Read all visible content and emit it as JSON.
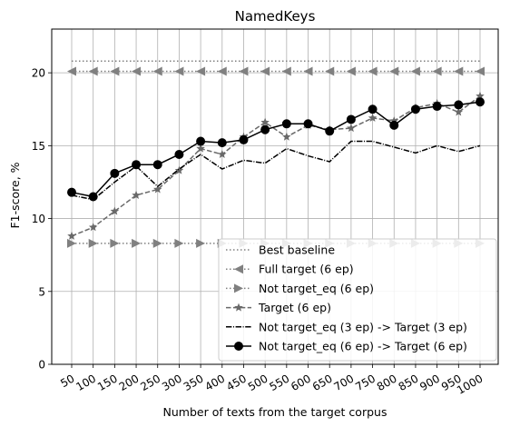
{
  "chart_data": {
    "type": "line",
    "title": "NamedKeys",
    "xlabel": "Number of texts from the target corpus",
    "ylabel": "F1-score, %",
    "ylim": [
      0,
      23
    ],
    "yticks": [
      0,
      5,
      10,
      15,
      20
    ],
    "grid": true,
    "legend_position": "lower-right",
    "categories": [
      "50",
      "100",
      "150",
      "200",
      "250",
      "300",
      "350",
      "400",
      "450",
      "500",
      "550",
      "600",
      "650",
      "700",
      "750",
      "800",
      "850",
      "900",
      "950",
      "1000"
    ],
    "series": [
      {
        "name": "Best baseline",
        "color": "#808080",
        "linestyle": "dotted",
        "marker": "none",
        "values": [
          20.8,
          20.8,
          20.8,
          20.8,
          20.8,
          20.8,
          20.8,
          20.8,
          20.8,
          20.8,
          20.8,
          20.8,
          20.8,
          20.8,
          20.8,
          20.8,
          20.8,
          20.8,
          20.8,
          20.8
        ]
      },
      {
        "name": "Full target (6 ep)",
        "color": "#808080",
        "linestyle": "dotted",
        "marker": "triangle-left",
        "values": [
          20.1,
          20.1,
          20.1,
          20.1,
          20.1,
          20.1,
          20.1,
          20.1,
          20.1,
          20.1,
          20.1,
          20.1,
          20.1,
          20.1,
          20.1,
          20.1,
          20.1,
          20.1,
          20.1,
          20.1
        ]
      },
      {
        "name": "Not target_eq (6 ep)",
        "color": "#808080",
        "linestyle": "dotted",
        "marker": "triangle-right",
        "values": [
          8.3,
          8.3,
          8.3,
          8.3,
          8.3,
          8.3,
          8.3,
          8.3,
          8.3,
          8.3,
          8.3,
          8.3,
          8.3,
          8.3,
          8.3,
          8.3,
          8.3,
          8.3,
          8.3,
          8.3
        ]
      },
      {
        "name": "Target (6 ep)",
        "color": "#696969",
        "linestyle": "dashed",
        "marker": "star",
        "values": [
          8.8,
          9.4,
          10.5,
          11.6,
          12.0,
          13.3,
          14.8,
          14.4,
          15.6,
          16.6,
          15.6,
          16.4,
          16.1,
          16.2,
          16.9,
          16.7,
          17.6,
          17.9,
          17.3,
          18.4
        ]
      },
      {
        "name": "Not target_eq (3 ep) -> Target (3 ep)",
        "color": "#000000",
        "linestyle": "dashdot",
        "marker": "none",
        "values": [
          11.6,
          11.3,
          12.5,
          13.6,
          12.2,
          13.4,
          14.4,
          13.4,
          14.0,
          13.8,
          14.8,
          14.3,
          13.9,
          15.3,
          15.3,
          14.9,
          14.5,
          15.0,
          14.6,
          15.0
        ]
      },
      {
        "name": "Not target_eq (6 ep) -> Target (6 ep)",
        "color": "#000000",
        "linestyle": "solid",
        "marker": "circle",
        "values": [
          11.8,
          11.5,
          13.1,
          13.7,
          13.7,
          14.4,
          15.3,
          15.2,
          15.4,
          16.1,
          16.5,
          16.5,
          16.0,
          16.8,
          17.5,
          16.4,
          17.5,
          17.7,
          17.8,
          18.0
        ]
      }
    ]
  }
}
